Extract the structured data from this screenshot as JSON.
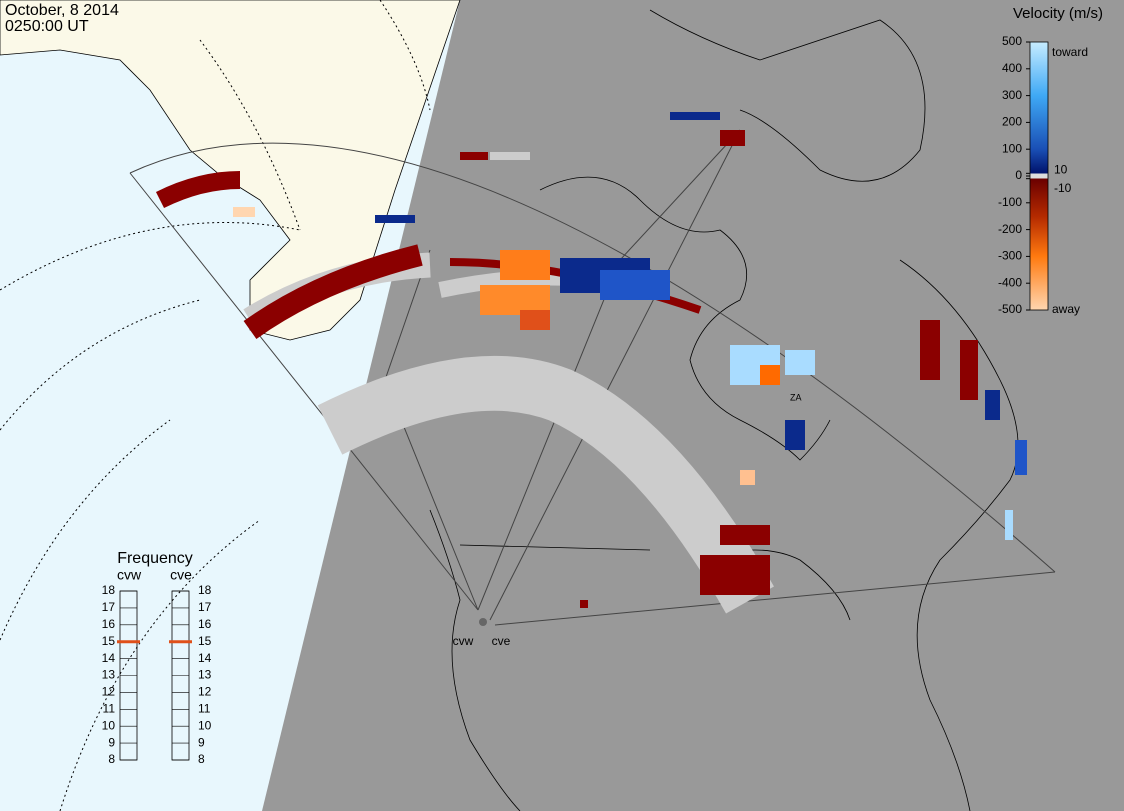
{
  "header": {
    "date": "October, 8 2014",
    "time": "0250:00 UT"
  },
  "velocity_scale": {
    "title": "Velocity (m/s)",
    "lim": [
      -500,
      500
    ],
    "ticks": [
      500,
      400,
      300,
      200,
      100,
      10,
      0,
      -10,
      -100,
      -200,
      -300,
      -400,
      -500
    ],
    "toward": "toward",
    "away": "away"
  },
  "frequency": {
    "title": "Frequency",
    "lim": [
      8,
      18
    ],
    "ticks": [
      18,
      17,
      16,
      15,
      14,
      13,
      12,
      11,
      10,
      9,
      8
    ],
    "radars": [
      {
        "name": "cvw",
        "value": 15
      },
      {
        "name": "cve",
        "value": 15
      }
    ]
  },
  "stations": [
    "cvw",
    "cve"
  ],
  "annotation": "ZA"
}
